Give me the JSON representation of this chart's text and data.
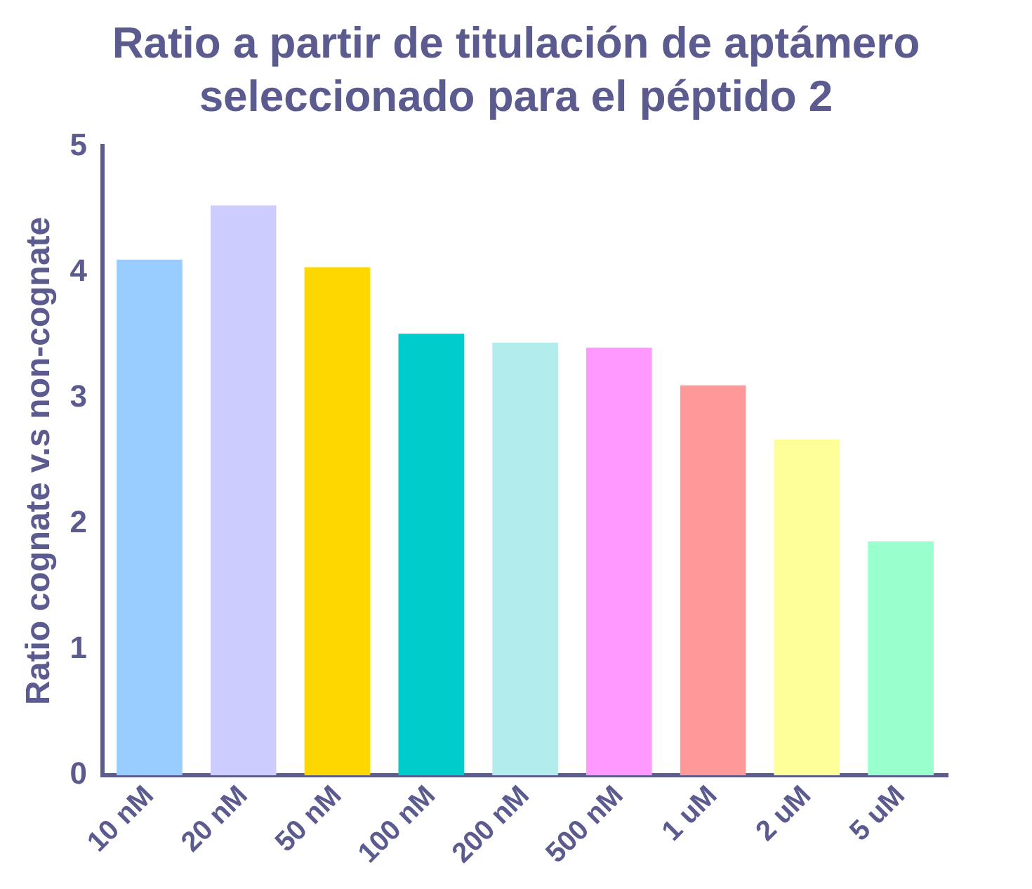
{
  "chart_data": {
    "type": "bar",
    "title": "Ratio a partir de titulación de aptámero seleccionado para el péptido 2",
    "ylabel": "Ratio cognate v.s non-cognate",
    "categories": [
      "10 nM",
      "20 nM",
      "50 nM",
      "100 nM",
      "200 nM",
      "500 nM",
      "1 uM",
      "2 uM",
      "5 uM"
    ],
    "values": [
      4.1,
      4.53,
      4.04,
      3.51,
      3.44,
      3.4,
      3.1,
      2.67,
      1.86
    ],
    "colors": [
      "#99ccff",
      "#ccccff",
      "#ffd700",
      "#00cccc",
      "#b3ecec",
      "#ff99ff",
      "#ff9999",
      "#ffff99",
      "#99ffcc"
    ],
    "ylim": [
      0,
      5
    ],
    "yticks": [
      0,
      1,
      2,
      3,
      4,
      5
    ],
    "grid": false,
    "legend": false
  }
}
